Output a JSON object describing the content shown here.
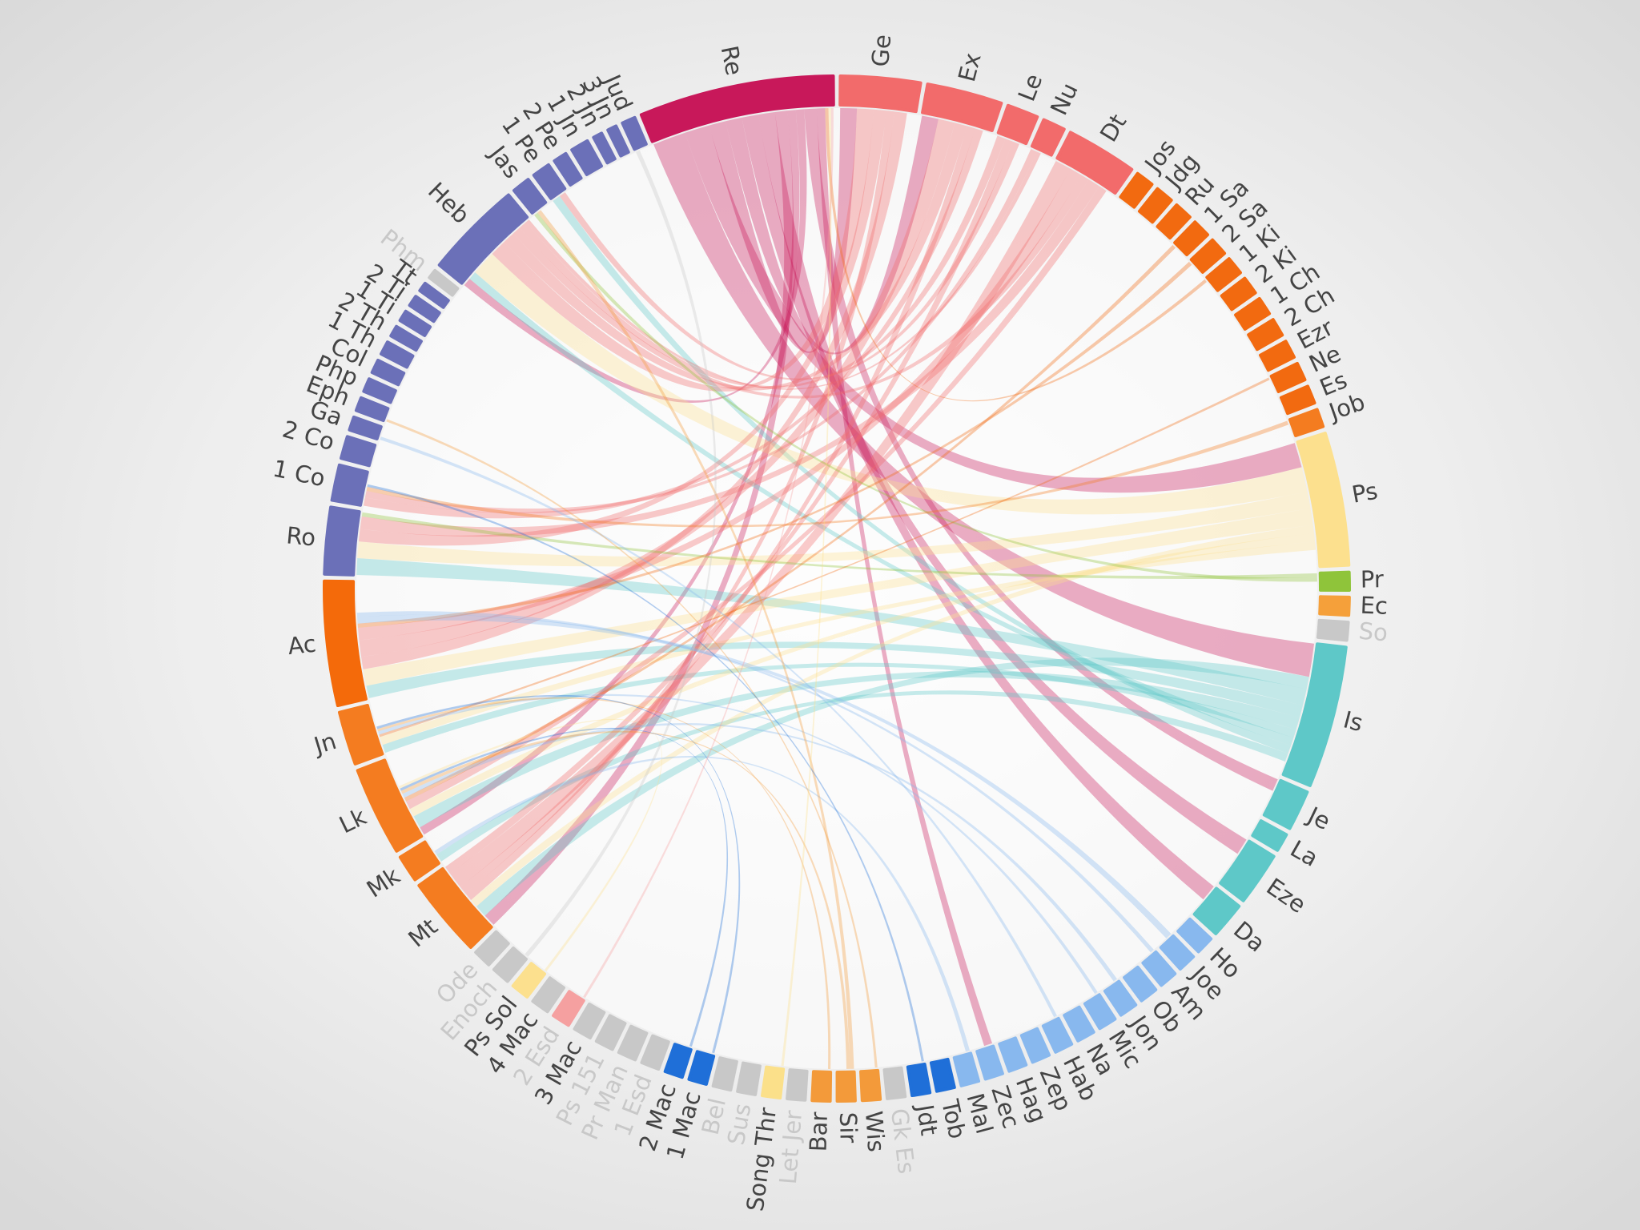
{
  "chart_data": {
    "type": "chord",
    "categories": [
      "Ge",
      "Ex",
      "Le",
      "Nu",
      "Dt",
      "Jos",
      "Jdg",
      "Ru",
      "1 Sa",
      "2 Sa",
      "1 Ki",
      "2 Ki",
      "1 Ch",
      "2 Ch",
      "Ezr",
      "Ne",
      "Es",
      "Job",
      "Ps",
      "Pr",
      "Ec",
      "So",
      "Is",
      "Je",
      "La",
      "Eze",
      "Da",
      "Ho",
      "Joe",
      "Am",
      "Ob",
      "Jon",
      "Mic",
      "Na",
      "Hab",
      "Zep",
      "Hag",
      "Zec",
      "Mal",
      "Tob",
      "Jdt",
      "Gk Es",
      "Wis",
      "Sir",
      "Bar",
      "Let Jer",
      "Song Thr",
      "Sus",
      "Bel",
      "1 Mac",
      "2 Mac",
      "1 Esd",
      "Pr Man",
      "Ps 151",
      "3 Mac",
      "2 Esd",
      "4 Mac",
      "Ps Sol",
      "Enoch",
      "Ode",
      "Mt",
      "Mk",
      "Lk",
      "Jn",
      "Ac",
      "Ro",
      "1 Co",
      "2 Co",
      "Ga",
      "Eph",
      "Php",
      "Col",
      "1 Th",
      "2 Th",
      "1 Ti",
      "2 Ti",
      "Tt",
      "Phm",
      "Heb",
      "Jas",
      "1 Pe",
      "2 Pe",
      "1 Jn",
      "2 Jn",
      "3 Jn",
      "Jud",
      "Re"
    ],
    "values": [
      9,
      8.5,
      3.5,
      2.5,
      8,
      2,
      2,
      2,
      2,
      2,
      2,
      2,
      2,
      2,
      2,
      2,
      2,
      2,
      15,
      2,
      2,
      2,
      16,
      4.5,
      2,
      6,
      4,
      2,
      2,
      2,
      2,
      2,
      2,
      2,
      2,
      2,
      2,
      2,
      2,
      2,
      2,
      2,
      2,
      2,
      2,
      2,
      2,
      2,
      2,
      2,
      2,
      2,
      2,
      2,
      2,
      2,
      2,
      2,
      2,
      2,
      9,
      3,
      10,
      6,
      14,
      7.5,
      4,
      2.5,
      1.5,
      1.5,
      1.5,
      1.5,
      1.5,
      1.2,
      1.2,
      1.2,
      1,
      1,
      11,
      2,
      2,
      1.5,
      2,
      1,
      1,
      1.5,
      22
    ],
    "colors": [
      "#f26b6b",
      "#f26b6b",
      "#f26b6b",
      "#f26b6b",
      "#f26b6b",
      "#f26a10",
      "#f26a10",
      "#f26a10",
      "#f26a10",
      "#f26a10",
      "#f26a10",
      "#f26a10",
      "#f26a10",
      "#f26a10",
      "#f26a10",
      "#f26a10",
      "#f26a10",
      "#f47c20",
      "#fce08e",
      "#8fc43a",
      "#f5a03a",
      "#c8c8c8",
      "#5ec8c8",
      "#5ec8c8",
      "#5ec8c8",
      "#5ec8c8",
      "#5ec8c8",
      "#88b8ee",
      "#88b8ee",
      "#88b8ee",
      "#88b8ee",
      "#88b8ee",
      "#88b8ee",
      "#88b8ee",
      "#88b8ee",
      "#88b8ee",
      "#88b8ee",
      "#88b8ee",
      "#88b8ee",
      "#1f6fd8",
      "#1f6fd8",
      "#c8c8c8",
      "#f39a3a",
      "#f39a3a",
      "#f39a3a",
      "#c8c8c8",
      "#fbe08a",
      "#c8c8c8",
      "#c8c8c8",
      "#1f6fd8",
      "#1f6fd8",
      "#c8c8c8",
      "#c8c8c8",
      "#c8c8c8",
      "#c8c8c8",
      "#f5a0a0",
      "#c8c8c8",
      "#fce08e",
      "#c8c8c8",
      "#c8c8c8",
      "#f47c20",
      "#f47c20",
      "#f47c20",
      "#f47c20",
      "#f46a0a",
      "#6b70b8",
      "#6b70b8",
      "#6b70b8",
      "#6b70b8",
      "#6b70b8",
      "#6b70b8",
      "#6b70b8",
      "#6b70b8",
      "#6b70b8",
      "#6b70b8",
      "#6b70b8",
      "#6b70b8",
      "#c8c8c8",
      "#6b70b8",
      "#6b70b8",
      "#6b70b8",
      "#6b70b8",
      "#6b70b8",
      "#6b70b8",
      "#6b70b8",
      "#6b70b8",
      "#c8185a"
    ],
    "label_colors": [
      "#444444",
      "#444444",
      "#444444",
      "#444444",
      "#444444",
      "#444444",
      "#444444",
      "#444444",
      "#444444",
      "#444444",
      "#444444",
      "#444444",
      "#444444",
      "#444444",
      "#444444",
      "#444444",
      "#444444",
      "#444444",
      "#444444",
      "#444444",
      "#444444",
      "#c8c8c8",
      "#444444",
      "#444444",
      "#444444",
      "#444444",
      "#444444",
      "#444444",
      "#444444",
      "#444444",
      "#444444",
      "#444444",
      "#444444",
      "#444444",
      "#444444",
      "#444444",
      "#444444",
      "#444444",
      "#444444",
      "#444444",
      "#444444",
      "#c8c8c8",
      "#444444",
      "#444444",
      "#444444",
      "#c8c8c8",
      "#444444",
      "#c8c8c8",
      "#c8c8c8",
      "#444444",
      "#444444",
      "#c8c8c8",
      "#c8c8c8",
      "#c8c8c8",
      "#444444",
      "#c8c8c8",
      "#444444",
      "#444444",
      "#c8c8c8",
      "#c8c8c8",
      "#444444",
      "#444444",
      "#444444",
      "#444444",
      "#444444",
      "#444444",
      "#444444",
      "#444444",
      "#444444",
      "#444444",
      "#444444",
      "#444444",
      "#444444",
      "#444444",
      "#444444",
      "#444444",
      "#444444",
      "#c8c8c8",
      "#444444",
      "#444444",
      "#444444",
      "#444444",
      "#444444",
      "#444444",
      "#444444",
      "#444444",
      "#444444"
    ],
    "links": [
      {
        "source": 86,
        "target": 22,
        "value": 4
      },
      {
        "source": 86,
        "target": 18,
        "value": 3
      },
      {
        "source": 86,
        "target": 0,
        "value": 2
      },
      {
        "source": 86,
        "target": 1,
        "value": 2
      },
      {
        "source": 86,
        "target": 25,
        "value": 2
      },
      {
        "source": 86,
        "target": 26,
        "value": 2
      },
      {
        "source": 86,
        "target": 60,
        "value": 1.5
      },
      {
        "source": 86,
        "target": 62,
        "value": 1
      },
      {
        "source": 86,
        "target": 78,
        "value": 1
      },
      {
        "source": 86,
        "target": 23,
        "value": 1.5
      },
      {
        "source": 86,
        "target": 37,
        "value": 1
      },
      {
        "source": 22,
        "target": 60,
        "value": 1.5
      },
      {
        "source": 22,
        "target": 65,
        "value": 2
      },
      {
        "source": 22,
        "target": 64,
        "value": 1.5
      },
      {
        "source": 22,
        "target": 62,
        "value": 1.5
      },
      {
        "source": 22,
        "target": 63,
        "value": 1
      },
      {
        "source": 22,
        "target": 78,
        "value": 1
      },
      {
        "source": 22,
        "target": 80,
        "value": 1
      },
      {
        "source": 22,
        "target": 61,
        "value": 1
      },
      {
        "source": 18,
        "target": 78,
        "value": 3
      },
      {
        "source": 18,
        "target": 65,
        "value": 2
      },
      {
        "source": 18,
        "target": 64,
        "value": 2
      },
      {
        "source": 18,
        "target": 60,
        "value": 1
      },
      {
        "source": 18,
        "target": 62,
        "value": 1
      },
      {
        "source": 18,
        "target": 63,
        "value": 1
      },
      {
        "source": 0,
        "target": 78,
        "value": 2
      },
      {
        "source": 0,
        "target": 65,
        "value": 1.5
      },
      {
        "source": 0,
        "target": 60,
        "value": 1
      },
      {
        "source": 0,
        "target": 64,
        "value": 1.5
      },
      {
        "source": 1,
        "target": 64,
        "value": 2
      },
      {
        "source": 1,
        "target": 78,
        "value": 1.5
      },
      {
        "source": 1,
        "target": 60,
        "value": 1
      },
      {
        "source": 1,
        "target": 66,
        "value": 1
      },
      {
        "source": 4,
        "target": 60,
        "value": 2
      },
      {
        "source": 4,
        "target": 64,
        "value": 1.5
      },
      {
        "source": 4,
        "target": 78,
        "value": 1
      },
      {
        "source": 4,
        "target": 65,
        "value": 1.5
      },
      {
        "source": 4,
        "target": 62,
        "value": 1
      },
      {
        "source": 2,
        "target": 78,
        "value": 1
      },
      {
        "source": 2,
        "target": 60,
        "value": 1
      },
      {
        "source": 2,
        "target": 80,
        "value": 0.8
      },
      {
        "source": 3,
        "target": 66,
        "value": 0.8
      },
      {
        "source": 3,
        "target": 78,
        "value": 0.5
      },
      {
        "source": 19,
        "target": 65,
        "value": 0.5
      },
      {
        "source": 19,
        "target": 79,
        "value": 0.5
      },
      {
        "source": 8,
        "target": 62,
        "value": 0.5
      },
      {
        "source": 10,
        "target": 86,
        "value": 0.4
      },
      {
        "source": 9,
        "target": 64,
        "value": 0.5
      },
      {
        "source": 17,
        "target": 66,
        "value": 0.5
      },
      {
        "source": 15,
        "target": 63,
        "value": 0.3
      },
      {
        "source": 28,
        "target": 64,
        "value": 0.8
      },
      {
        "source": 29,
        "target": 64,
        "value": 0.5
      },
      {
        "source": 34,
        "target": 68,
        "value": 0.4
      },
      {
        "source": 38,
        "target": 61,
        "value": 0.5
      },
      {
        "source": 32,
        "target": 63,
        "value": 0.4
      },
      {
        "source": 31,
        "target": 62,
        "value": 0.5
      },
      {
        "source": 42,
        "target": 69,
        "value": 0.3
      },
      {
        "source": 43,
        "target": 79,
        "value": 0.5
      },
      {
        "source": 43,
        "target": 62,
        "value": 0.4
      },
      {
        "source": 44,
        "target": 63,
        "value": 0.3
      },
      {
        "source": 49,
        "target": 63,
        "value": 0.3
      },
      {
        "source": 50,
        "target": 62,
        "value": 0.3
      },
      {
        "source": 40,
        "target": 66,
        "value": 0.3
      },
      {
        "source": 46,
        "target": 86,
        "value": 0.3
      },
      {
        "source": 58,
        "target": 85,
        "value": 0.5
      },
      {
        "source": 55,
        "target": 86,
        "value": 0.3
      },
      {
        "source": 57,
        "target": 62,
        "value": 0.3
      }
    ]
  }
}
